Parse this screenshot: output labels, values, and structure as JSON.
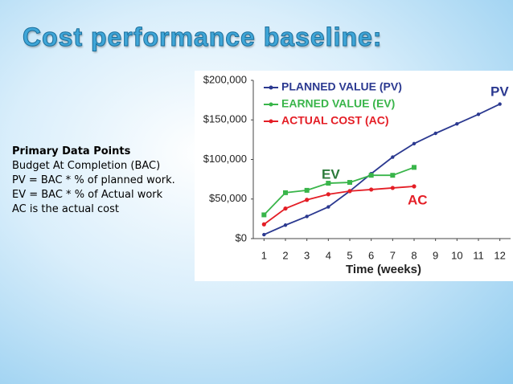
{
  "slide": {
    "title": "Cost performance baseline:",
    "lines": [
      "Primary Data Points",
      "Budget At Completion (BAC)",
      "PV = BAC * % of planned work.",
      "EV = BAC * % of Actual work",
      "AC is the actual cost"
    ]
  },
  "chart_data": {
    "type": "line",
    "xlabel": "Time (weeks)",
    "x": [
      1,
      2,
      3,
      4,
      5,
      6,
      7,
      8,
      9,
      10,
      11,
      12
    ],
    "xlim": [
      0.5,
      12.5
    ],
    "xticks": [
      1,
      2,
      3,
      4,
      5,
      6,
      7,
      8,
      9,
      10,
      11,
      12
    ],
    "ylim": [
      0,
      200000
    ],
    "yticks": [
      {
        "value": 0,
        "label": "$0"
      },
      {
        "value": 50000,
        "label": "$50,000"
      },
      {
        "value": 100000,
        "label": "$100,000"
      },
      {
        "value": 150000,
        "label": "$150,000"
      },
      {
        "value": 200000,
        "label": "$200,000"
      }
    ],
    "series": [
      {
        "name": "PLANNED VALUE (PV)",
        "color": "#2b3990",
        "values": [
          5000,
          17000,
          28000,
          40000,
          60000,
          82000,
          103000,
          120000,
          133000,
          145000,
          157000,
          170000
        ]
      },
      {
        "name": "EARNED VALUE (EV)",
        "color": "#39b54a",
        "values": [
          30000,
          58000,
          61000,
          70000,
          71000,
          80000,
          80000,
          90000,
          null,
          null,
          null,
          null
        ]
      },
      {
        "name": "ACTUAL COST (AC)",
        "color": "#e41e26",
        "values": [
          18000,
          38000,
          49000,
          56000,
          60000,
          62000,
          64000,
          66000,
          null,
          null,
          null,
          null
        ]
      }
    ],
    "annotations": [
      {
        "text": "PV",
        "color": "#2b3990"
      },
      {
        "text": "EV",
        "color": "#2b7a3a"
      },
      {
        "text": "AC",
        "color": "#e41e26"
      }
    ],
    "legend": "upper left"
  }
}
